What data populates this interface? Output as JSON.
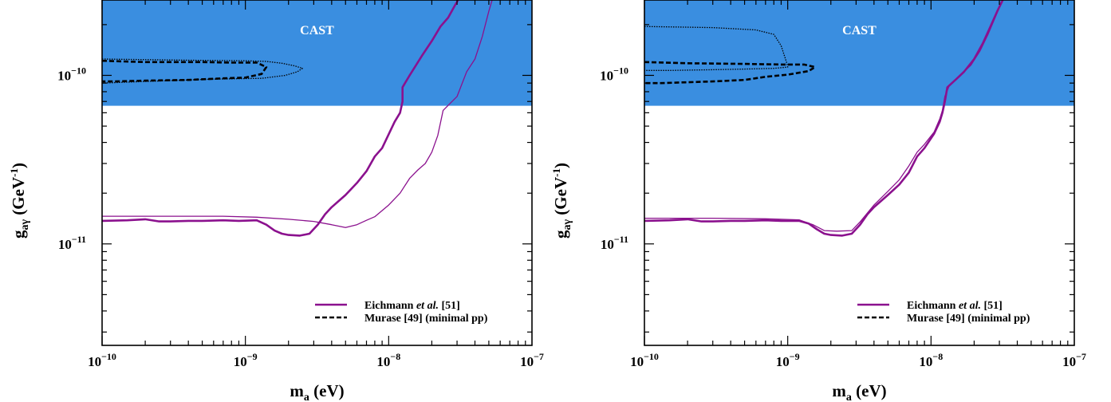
{
  "chart_data": [
    {
      "type": "line",
      "xlabel": {
        "base": "m",
        "sub": "a",
        "rest": " (eV)"
      },
      "ylabel": {
        "base": "g",
        "sub": "aγ",
        "open": " (GeV",
        "sup": "-1",
        "close": ")"
      },
      "xscale": "log",
      "yscale": "log",
      "xlim": [
        1e-10,
        1e-07
      ],
      "ylim": [
        2.5e-12,
        2.8e-10
      ],
      "xticks": [
        {
          "value": 1e-10,
          "base": "10",
          "exp": "−10"
        },
        {
          "value": 1e-09,
          "base": "10",
          "exp": "−9"
        },
        {
          "value": 1e-08,
          "base": "10",
          "exp": "−8"
        },
        {
          "value": 1e-07,
          "base": "10",
          "exp": "−7"
        }
      ],
      "yticks": [
        {
          "value": 1e-10,
          "base": "10",
          "exp": "−10"
        },
        {
          "value": 1e-11,
          "base": "10",
          "exp": "−11"
        }
      ],
      "band": {
        "label": "CAST",
        "ymin": 6.6e-11,
        "color": "#3a8ee0"
      },
      "legend": {
        "position": "bottom-right",
        "entries": [
          {
            "parts": [
              {
                "text": "Eichmann "
              },
              {
                "text": "et al.",
                "italic": true
              },
              {
                "text": " [51]"
              }
            ],
            "color": "#8b118e",
            "style": "solid"
          },
          {
            "parts": [
              {
                "text": "Murase [49] (minimal pp)"
              }
            ],
            "color": "#000000",
            "style": "dashed"
          }
        ]
      },
      "series": [
        {
          "color": "#8b118e",
          "style": "solid",
          "width": 2.6,
          "points": [
            [
              1e-10,
              1.37e-11
            ],
            [
              1.5e-10,
              1.38e-11
            ],
            [
              2e-10,
              1.4e-11
            ],
            [
              2.5e-10,
              1.36e-11
            ],
            [
              3e-10,
              1.36e-11
            ],
            [
              4e-10,
              1.37e-11
            ],
            [
              5e-10,
              1.37e-11
            ],
            [
              7e-10,
              1.38e-11
            ],
            [
              9e-10,
              1.37e-11
            ],
            [
              1.2e-09,
              1.38e-11
            ],
            [
              1.4e-09,
              1.3e-11
            ],
            [
              1.6e-09,
              1.2e-11
            ],
            [
              1.8e-09,
              1.15e-11
            ],
            [
              2e-09,
              1.13e-11
            ],
            [
              2.4e-09,
              1.12e-11
            ],
            [
              2.8e-09,
              1.15e-11
            ],
            [
              3.2e-09,
              1.3e-11
            ],
            [
              3.6e-09,
              1.5e-11
            ],
            [
              4e-09,
              1.65e-11
            ],
            [
              5e-09,
              1.95e-11
            ],
            [
              6e-09,
              2.3e-11
            ],
            [
              7e-09,
              2.7e-11
            ],
            [
              8e-09,
              3.3e-11
            ],
            [
              9e-09,
              3.7e-11
            ],
            [
              1.1e-08,
              5.3e-11
            ],
            [
              1.2e-08,
              6e-11
            ],
            [
              1.25e-08,
              7e-11
            ],
            [
              1.25e-08,
              8.5e-11
            ],
            [
              1.4e-08,
              1e-10
            ],
            [
              1.7e-08,
              1.3e-10
            ],
            [
              2e-08,
              1.6e-10
            ],
            [
              2.3e-08,
              1.95e-10
            ],
            [
              2.6e-08,
              2.2e-10
            ],
            [
              2.9e-08,
              2.6e-10
            ],
            [
              3.2e-08,
              3e-10
            ]
          ]
        },
        {
          "color": "#8b118e",
          "style": "solid",
          "width": 1.3,
          "points": [
            [
              1e-10,
              1.46e-11
            ],
            [
              3e-10,
              1.46e-11
            ],
            [
              7e-10,
              1.46e-11
            ],
            [
              1.2e-09,
              1.44e-11
            ],
            [
              2e-09,
              1.4e-11
            ],
            [
              3e-09,
              1.36e-11
            ],
            [
              4e-09,
              1.3e-11
            ],
            [
              5e-09,
              1.25e-11
            ],
            [
              6e-09,
              1.3e-11
            ],
            [
              7e-09,
              1.38e-11
            ],
            [
              8e-09,
              1.45e-11
            ],
            [
              1e-08,
              1.7e-11
            ],
            [
              1.2e-08,
              2e-11
            ],
            [
              1.4e-08,
              2.45e-11
            ],
            [
              1.6e-08,
              2.75e-11
            ],
            [
              1.8e-08,
              3e-11
            ],
            [
              2e-08,
              3.5e-11
            ],
            [
              2.2e-08,
              4.4e-11
            ],
            [
              2.4e-08,
              6.2e-11
            ],
            [
              3e-08,
              7.5e-11
            ],
            [
              3.5e-08,
              1.05e-10
            ],
            [
              4e-08,
              1.25e-10
            ],
            [
              4.5e-08,
              1.7e-10
            ],
            [
              5e-08,
              2.4e-10
            ],
            [
              5.4e-08,
              3e-10
            ]
          ]
        },
        {
          "color": "#000000",
          "style": "dashed",
          "width": 2.6,
          "points": [
            [
              1e-10,
              1.22e-10
            ],
            [
              2e-10,
              1.2e-10
            ],
            [
              5e-10,
              1.2e-10
            ],
            [
              8e-10,
              1.19e-10
            ],
            [
              1.2e-09,
              1.19e-10
            ],
            [
              1.4e-09,
              1.12e-10
            ],
            [
              1.3e-09,
              1.02e-10
            ],
            [
              1e-09,
              9.7e-11
            ],
            [
              7e-10,
              9.6e-11
            ],
            [
              4e-10,
              9.4e-11
            ],
            [
              2e-10,
              9.3e-11
            ],
            [
              1.2e-10,
              9.2e-11
            ],
            [
              1e-10,
              9.2e-11
            ]
          ]
        },
        {
          "color": "#000000",
          "style": "dotted",
          "width": 1.3,
          "points": [
            [
              1e-10,
              1.25e-10
            ],
            [
              4e-10,
              1.23e-10
            ],
            [
              1e-09,
              1.22e-10
            ],
            [
              1.4e-09,
              1.21e-10
            ],
            [
              1.8e-09,
              1.18e-10
            ],
            [
              2.2e-09,
              1.14e-10
            ],
            [
              2.5e-09,
              1.1e-10
            ],
            [
              2.3e-09,
              1.05e-10
            ],
            [
              1.9e-09,
              1e-10
            ],
            [
              1.3e-09,
              9.6e-11
            ],
            [
              6e-10,
              9.5e-11
            ],
            [
              2e-10,
              9.2e-11
            ],
            [
              1e-10,
              9e-11
            ]
          ]
        }
      ]
    },
    {
      "type": "line",
      "xlabel": {
        "base": "m",
        "sub": "a",
        "rest": " (eV)"
      },
      "ylabel": {
        "base": "g",
        "sub": "aγ",
        "open": " (GeV",
        "sup": "-1",
        "close": ")"
      },
      "xscale": "log",
      "yscale": "log",
      "xlim": [
        1e-10,
        1e-07
      ],
      "ylim": [
        2.5e-12,
        2.8e-10
      ],
      "xticks": [
        {
          "value": 1e-10,
          "base": "10",
          "exp": "−10"
        },
        {
          "value": 1e-09,
          "base": "10",
          "exp": "−9"
        },
        {
          "value": 1e-08,
          "base": "10",
          "exp": "−8"
        },
        {
          "value": 1e-07,
          "base": "10",
          "exp": "−7"
        }
      ],
      "yticks": [
        {
          "value": 1e-10,
          "base": "10",
          "exp": "−10"
        },
        {
          "value": 1e-11,
          "base": "10",
          "exp": "−11"
        }
      ],
      "band": {
        "label": "CAST",
        "ymin": 6.6e-11,
        "color": "#3a8ee0"
      },
      "legend": {
        "position": "bottom-right",
        "entries": [
          {
            "parts": [
              {
                "text": "Eichmann "
              },
              {
                "text": "et al.",
                "italic": true
              },
              {
                "text": " [51]"
              }
            ],
            "color": "#8b118e",
            "style": "solid"
          },
          {
            "parts": [
              {
                "text": "Murase [49] (minimal pp)"
              }
            ],
            "color": "#000000",
            "style": "dashed"
          }
        ]
      },
      "series": [
        {
          "color": "#8b118e",
          "style": "solid",
          "width": 2.6,
          "points": [
            [
              1e-10,
              1.37e-11
            ],
            [
              1.5e-10,
              1.38e-11
            ],
            [
              2e-10,
              1.4e-11
            ],
            [
              2.5e-10,
              1.36e-11
            ],
            [
              3e-10,
              1.36e-11
            ],
            [
              4e-10,
              1.37e-11
            ],
            [
              5e-10,
              1.37e-11
            ],
            [
              7e-10,
              1.38e-11
            ],
            [
              9e-10,
              1.37e-11
            ],
            [
              1.2e-09,
              1.37e-11
            ],
            [
              1.4e-09,
              1.32e-11
            ],
            [
              1.6e-09,
              1.22e-11
            ],
            [
              1.8e-09,
              1.15e-11
            ],
            [
              2e-09,
              1.13e-11
            ],
            [
              2.4e-09,
              1.12e-11
            ],
            [
              2.8e-09,
              1.15e-11
            ],
            [
              3.2e-09,
              1.3e-11
            ],
            [
              3.6e-09,
              1.5e-11
            ],
            [
              4e-09,
              1.65e-11
            ],
            [
              5e-09,
              1.95e-11
            ],
            [
              6e-09,
              2.25e-11
            ],
            [
              7e-09,
              2.65e-11
            ],
            [
              8e-09,
              3.3e-11
            ],
            [
              9e-09,
              3.7e-11
            ],
            [
              1.05e-08,
              4.5e-11
            ],
            [
              1.15e-08,
              5.3e-11
            ],
            [
              1.2e-08,
              6e-11
            ],
            [
              1.25e-08,
              7e-11
            ],
            [
              1.3e-08,
              8.5e-11
            ],
            [
              1.5e-08,
              9.5e-11
            ],
            [
              1.7e-08,
              1.05e-10
            ],
            [
              2e-08,
              1.25e-10
            ],
            [
              2.3e-08,
              1.55e-10
            ],
            [
              2.6e-08,
              1.95e-10
            ],
            [
              2.9e-08,
              2.4e-10
            ],
            [
              3.2e-08,
              2.85e-10
            ]
          ]
        },
        {
          "color": "#8b118e",
          "style": "solid",
          "width": 1.3,
          "points": [
            [
              1e-10,
              1.42e-11
            ],
            [
              3e-10,
              1.42e-11
            ],
            [
              7e-10,
              1.41e-11
            ],
            [
              1.2e-09,
              1.39e-11
            ],
            [
              1.5e-09,
              1.3e-11
            ],
            [
              1.8e-09,
              1.2e-11
            ],
            [
              2.2e-09,
              1.19e-11
            ],
            [
              2.8e-09,
              1.2e-11
            ],
            [
              3.2e-09,
              1.35e-11
            ],
            [
              4e-09,
              1.7e-11
            ],
            [
              5e-09,
              2.05e-11
            ],
            [
              6e-09,
              2.4e-11
            ],
            [
              7e-09,
              2.9e-11
            ],
            [
              8e-09,
              3.5e-11
            ],
            [
              9e-09,
              3.9e-11
            ],
            [
              1.05e-08,
              4.6e-11
            ],
            [
              1.15e-08,
              5.5e-11
            ],
            [
              1.2e-08,
              6.2e-11
            ],
            [
              1.25e-08,
              7.5e-11
            ],
            [
              1.35e-08,
              8.8e-11
            ],
            [
              1.6e-08,
              1e-10
            ],
            [
              1.9e-08,
              1.15e-10
            ],
            [
              2.2e-08,
              1.4e-10
            ],
            [
              2.5e-08,
              1.75e-10
            ],
            [
              2.8e-08,
              2.2e-10
            ],
            [
              3.1e-08,
              2.7e-10
            ],
            [
              3.3e-08,
              3e-10
            ]
          ]
        },
        {
          "color": "#000000",
          "style": "dashed",
          "width": 2.6,
          "points": [
            [
              1e-10,
              1.2e-10
            ],
            [
              2e-10,
              1.18e-10
            ],
            [
              5e-10,
              1.17e-10
            ],
            [
              9e-10,
              1.16e-10
            ],
            [
              1.3e-09,
              1.16e-10
            ],
            [
              1.55e-09,
              1.12e-10
            ],
            [
              1.4e-09,
              1.06e-10
            ],
            [
              1e-09,
              1.01e-10
            ],
            [
              7e-10,
              9.8e-11
            ],
            [
              5e-10,
              9.4e-11
            ],
            [
              3e-10,
              9.2e-11
            ],
            [
              2e-10,
              9.1e-11
            ],
            [
              1.3e-10,
              9e-11
            ],
            [
              1e-10,
              9e-11
            ]
          ]
        },
        {
          "color": "#000000",
          "style": "dotted",
          "width": 1.3,
          "points": [
            [
              1e-10,
              1.95e-10
            ],
            [
              3e-10,
              1.92e-10
            ],
            [
              6e-10,
              1.86e-10
            ],
            [
              8e-10,
              1.75e-10
            ],
            [
              9e-10,
              1.5e-10
            ],
            [
              9.8e-10,
              1.2e-10
            ],
            [
              1e-09,
              1.12e-10
            ],
            [
              8e-10,
              1.1e-10
            ],
            [
              5e-10,
              1.09e-10
            ],
            [
              3e-10,
              1.08e-10
            ],
            [
              1.5e-10,
              1.07e-10
            ],
            [
              1e-10,
              1.07e-10
            ]
          ]
        }
      ]
    }
  ]
}
